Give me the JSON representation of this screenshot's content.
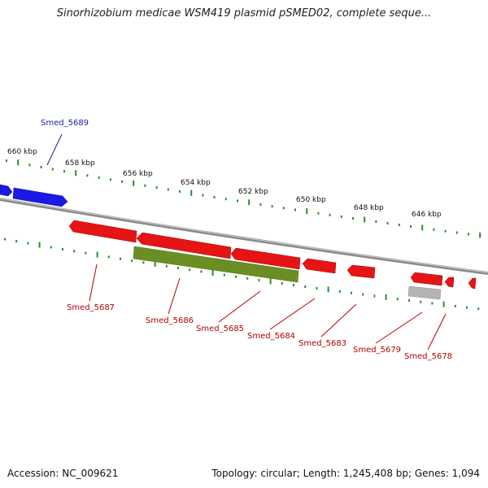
{
  "title": "Sinorhizobium medicae WSM419 plasmid pSMED02, complete seque...",
  "footer": {
    "accession": "Accession: NC_009621",
    "summary": "Topology: circular; Length: 1,245,408 bp; Genes: 1,094"
  },
  "scale_labels": [
    "660 kbp",
    "658 kbp",
    "656 kbp",
    "654 kbp",
    "652 kbp",
    "650 kbp",
    "648 kbp",
    "646 kbp"
  ],
  "colors": {
    "forward_gene": "#1a1ae6",
    "reverse_gene": "#e61414",
    "rna": "#6b8e23",
    "other": "#b4b4b4",
    "backbone": "#8a8a8a",
    "ticks": "#2e8b2e",
    "forward_label": "#1a1aa0",
    "reverse_label": "#b40000"
  },
  "gene_labels": {
    "forward": [
      "Smed_5689"
    ],
    "reverse": [
      "Smed_5687",
      "Smed_5686",
      "Smed_5685",
      "Smed_5684",
      "Smed_5683",
      "Smed_5679",
      "Smed_5678"
    ]
  }
}
